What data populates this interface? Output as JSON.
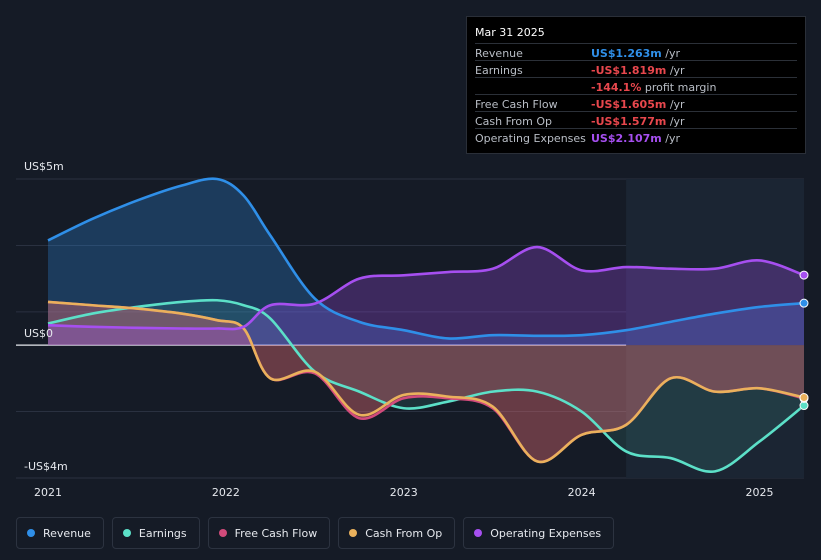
{
  "tooltip": {
    "date": "Mar 31 2025",
    "rows": [
      {
        "label": "Revenue",
        "value": "US$1.263m",
        "unit": " /yr",
        "color": "#2f8fe8"
      },
      {
        "label": "Earnings",
        "value": "-US$1.819m",
        "unit": " /yr",
        "color": "#e8474d"
      },
      {
        "label": "",
        "value": "-144.1%",
        "unit": " profit margin",
        "color": "#e8474d"
      },
      {
        "label": "Free Cash Flow",
        "value": "-US$1.605m",
        "unit": " /yr",
        "color": "#e8474d"
      },
      {
        "label": "Cash From Op",
        "value": "-US$1.577m",
        "unit": " /yr",
        "color": "#e8474d"
      },
      {
        "label": "Operating Expenses",
        "value": "US$2.107m",
        "unit": " /yr",
        "color": "#a64ff0"
      }
    ]
  },
  "legend": [
    {
      "label": "Revenue",
      "color": "#2f8fe8"
    },
    {
      "label": "Earnings",
      "color": "#5ce0c8"
    },
    {
      "label": "Free Cash Flow",
      "color": "#d24b7b"
    },
    {
      "label": "Cash From Op",
      "color": "#eab15c"
    },
    {
      "label": "Operating Expenses",
      "color": "#a64ff0"
    }
  ],
  "chart_data": {
    "type": "area",
    "title": "",
    "y_label_top": "US$5m",
    "y_label_zero": "US$0",
    "y_label_bottom": "-US$4m",
    "ylim": [
      -4,
      5
    ],
    "xlim": [
      2021.0,
      2025.25
    ],
    "x_ticks": [
      {
        "value": 2021,
        "label": "2021"
      },
      {
        "value": 2022,
        "label": "2022"
      },
      {
        "value": 2023,
        "label": "2023"
      },
      {
        "value": 2024,
        "label": "2024"
      },
      {
        "value": 2025,
        "label": "2025"
      }
    ],
    "highlight_from": 2024.25,
    "series": [
      {
        "name": "Revenue",
        "color": "#2f8fe8",
        "x": [
          2021.0,
          2021.25,
          2021.5,
          2021.75,
          2021.95,
          2022.1,
          2022.25,
          2022.5,
          2022.75,
          2023.0,
          2023.25,
          2023.5,
          2023.75,
          2024.0,
          2024.25,
          2024.5,
          2024.75,
          2025.0,
          2025.25
        ],
        "values": [
          3.15,
          3.8,
          4.35,
          4.8,
          5.0,
          4.5,
          3.3,
          1.4,
          0.7,
          0.45,
          0.2,
          0.3,
          0.28,
          0.3,
          0.45,
          0.7,
          0.95,
          1.15,
          1.263
        ]
      },
      {
        "name": "Earnings",
        "color": "#5ce0c8",
        "x": [
          2021.0,
          2021.25,
          2021.5,
          2021.75,
          2021.95,
          2022.1,
          2022.25,
          2022.5,
          2022.75,
          2023.0,
          2023.25,
          2023.5,
          2023.75,
          2024.0,
          2024.25,
          2024.5,
          2024.75,
          2025.0,
          2025.25
        ],
        "values": [
          0.65,
          0.95,
          1.15,
          1.3,
          1.35,
          1.2,
          0.8,
          -0.8,
          -1.4,
          -1.9,
          -1.7,
          -1.4,
          -1.4,
          -2.0,
          -3.2,
          -3.4,
          -3.8,
          -2.9,
          -1.819
        ]
      },
      {
        "name": "Free Cash Flow",
        "color": "#d24b7b",
        "x": [
          2021.0,
          2021.25,
          2021.5,
          2021.75,
          2021.95,
          2022.1,
          2022.25,
          2022.5,
          2022.75,
          2023.0,
          2023.25,
          2023.5,
          2023.75,
          2024.0,
          2024.25,
          2024.5,
          2024.75,
          2025.0,
          2025.25
        ],
        "values": [
          1.3,
          1.2,
          1.1,
          0.95,
          0.75,
          0.5,
          -1.0,
          -0.85,
          -2.2,
          -1.6,
          -1.6,
          -1.9,
          -3.5,
          -2.7,
          -2.4,
          -1.0,
          -1.4,
          -1.3,
          -1.605
        ]
      },
      {
        "name": "Cash From Op",
        "color": "#eab15c",
        "x": [
          2021.0,
          2021.25,
          2021.5,
          2021.75,
          2021.95,
          2022.1,
          2022.25,
          2022.5,
          2022.75,
          2023.0,
          2023.25,
          2023.5,
          2023.75,
          2024.0,
          2024.25,
          2024.5,
          2024.75,
          2025.0,
          2025.25
        ],
        "values": [
          1.3,
          1.2,
          1.1,
          0.95,
          0.75,
          0.5,
          -1.0,
          -0.8,
          -2.1,
          -1.5,
          -1.55,
          -1.85,
          -3.5,
          -2.7,
          -2.4,
          -1.0,
          -1.4,
          -1.3,
          -1.577
        ]
      },
      {
        "name": "Operating Expenses",
        "color": "#a64ff0",
        "x": [
          2021.0,
          2021.25,
          2021.5,
          2021.75,
          2021.95,
          2022.1,
          2022.25,
          2022.5,
          2022.75,
          2023.0,
          2023.25,
          2023.5,
          2023.75,
          2024.0,
          2024.25,
          2024.5,
          2024.75,
          2025.0,
          2025.25
        ],
        "values": [
          0.6,
          0.55,
          0.52,
          0.5,
          0.5,
          0.55,
          1.2,
          1.25,
          2.0,
          2.1,
          2.2,
          2.3,
          2.95,
          2.25,
          2.35,
          2.3,
          2.3,
          2.55,
          2.107
        ]
      }
    ]
  }
}
